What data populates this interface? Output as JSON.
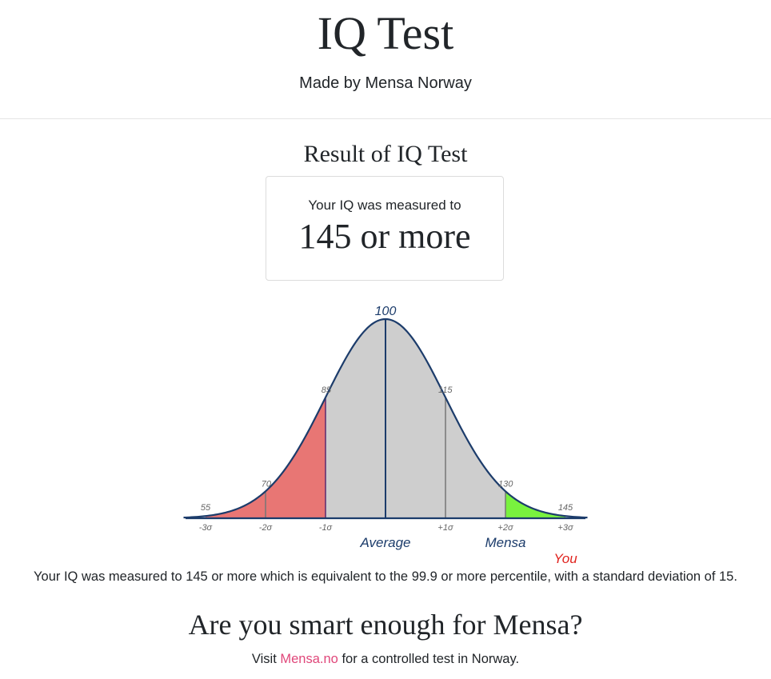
{
  "header": {
    "title": "IQ Test",
    "subtitle": "Made by Mensa Norway"
  },
  "result": {
    "heading": "Result of IQ Test",
    "caption": "Your IQ was measured to",
    "value": "145 or more"
  },
  "chart_data": {
    "type": "area",
    "mean": 100,
    "standard_deviation": 15,
    "xlim": [
      55,
      145
    ],
    "iq_tick_labels": [
      "55",
      "70",
      "85",
      "100",
      "115",
      "130",
      "145"
    ],
    "sigma_tick_labels": [
      "-3σ",
      "-2σ",
      "-1σ",
      "+1σ",
      "+2σ",
      "+3σ"
    ],
    "markers": {
      "average": "Average",
      "mensa": "Mensa",
      "you": "You"
    },
    "regions": [
      {
        "from": 55,
        "to": 85,
        "color": "#e87674"
      },
      {
        "from": 85,
        "to": 130,
        "color": "#cecece"
      },
      {
        "from": 130,
        "to": 145,
        "color": "#79f23e"
      }
    ],
    "colors": {
      "curve": "#1c3c6b",
      "label_blue": "#1c3c6b",
      "you_label": "#e0241f",
      "tick_label": "#666666"
    }
  },
  "summary": {
    "text": "Your IQ was measured to 145 or more which is equivalent to the 99.9 or more percentile, with a standard deviation of 15."
  },
  "cta": {
    "heading": "Are you smart enough for Mensa?",
    "prefix": "Visit ",
    "link_text": "Mensa.no",
    "suffix": " for a controlled test in Norway."
  }
}
